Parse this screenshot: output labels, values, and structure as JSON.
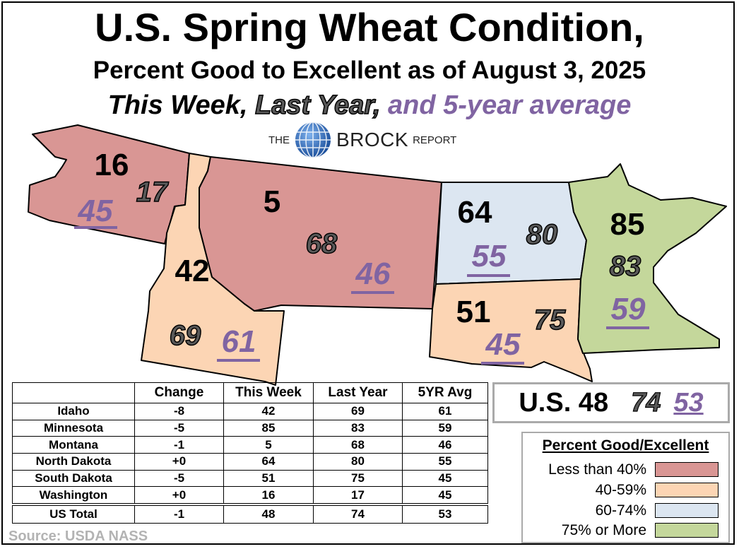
{
  "title": {
    "line1": "U.S. Spring Wheat Condition,",
    "line2": "Percent Good to Excellent as of August 3, 2025",
    "this_week": "This Week,",
    "last_year": "Last Year,",
    "five_year": "and 5-year average"
  },
  "brand": {
    "the": "THE",
    "brock": "BROCK",
    "report": "REPORT"
  },
  "colors": {
    "lt40": "#d99694",
    "c40_59": "#fcd5b4",
    "c60_74": "#dce6f1",
    "c75plus": "#c4d79b",
    "last_year_text": "#595959",
    "avg_text": "#8064a2"
  },
  "map": {
    "states": [
      {
        "name": "Washington",
        "this_week": "16",
        "last_year": "17",
        "five_yr": "45",
        "category": "lt40"
      },
      {
        "name": "Idaho",
        "this_week": "42",
        "last_year": "69",
        "five_yr": "61",
        "category": "c40_59"
      },
      {
        "name": "Montana",
        "this_week": "5",
        "last_year": "68",
        "five_yr": "46",
        "category": "lt40"
      },
      {
        "name": "North Dakota",
        "this_week": "64",
        "last_year": "80",
        "five_yr": "55",
        "category": "c60_74"
      },
      {
        "name": "South Dakota",
        "this_week": "51",
        "last_year": "75",
        "five_yr": "45",
        "category": "c40_59"
      },
      {
        "name": "Minnesota",
        "this_week": "85",
        "last_year": "83",
        "five_yr": "59",
        "category": "c75plus"
      }
    ]
  },
  "table": {
    "headers": [
      "",
      "Change",
      "This Week",
      "Last Year",
      "5YR Avg"
    ],
    "rows": [
      [
        "Idaho",
        "-8",
        "42",
        "69",
        "61"
      ],
      [
        "Minnesota",
        "-5",
        "85",
        "83",
        "59"
      ],
      [
        "Montana",
        "-1",
        "5",
        "68",
        "46"
      ],
      [
        "North Dakota",
        "+0",
        "64",
        "80",
        "55"
      ],
      [
        "South Dakota",
        "-5",
        "51",
        "75",
        "45"
      ],
      [
        "Washington",
        "+0",
        "16",
        "17",
        "45"
      ]
    ],
    "total": [
      "US Total",
      "-1",
      "48",
      "74",
      "53"
    ]
  },
  "us": {
    "label": "U.S. 48",
    "last_year": "74",
    "five_yr": "53"
  },
  "legend": {
    "title": "Percent Good/Excellent",
    "items": [
      {
        "label": "Less than 40%",
        "color": "#d99694"
      },
      {
        "label": "40-59%",
        "color": "#fcd5b4"
      },
      {
        "label": "60-74%",
        "color": "#dce6f1"
      },
      {
        "label": "75% or More",
        "color": "#c4d79b"
      }
    ]
  },
  "source": "Source: USDA NASS"
}
